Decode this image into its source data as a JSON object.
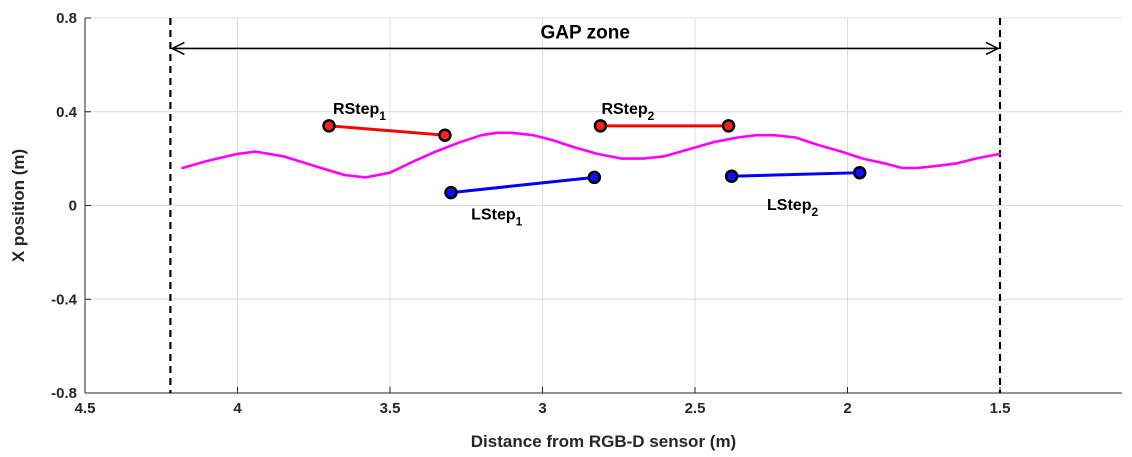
{
  "chart_data": {
    "type": "line",
    "xlabel": "Distance from RGB-D sensor (m)",
    "ylabel": "X position (m)",
    "xlim": [
      1.1,
      4.5
    ],
    "ylim": [
      -0.8,
      0.8
    ],
    "x_reversed": true,
    "x_ticks": [
      4.5,
      4,
      3.5,
      3,
      2.5,
      2,
      1.5
    ],
    "x_tick_labels": [
      "4.5",
      "4",
      "3.5",
      "3",
      "2.5",
      "2",
      "1.5"
    ],
    "y_ticks": [
      -0.8,
      -0.4,
      0,
      0.4,
      0.8
    ],
    "y_tick_labels": [
      "-0.8",
      "-0.4",
      "0",
      "0.4",
      "0.8"
    ],
    "grid": true,
    "gap_zone": {
      "label": "GAP zone",
      "x_start": 4.22,
      "x_end": 1.5,
      "arrow_y": 0.67
    },
    "series": [
      {
        "color": "#ff00ff",
        "x": [
          4.18,
          4.1,
          4.0,
          3.94,
          3.85,
          3.75,
          3.65,
          3.58,
          3.5,
          3.42,
          3.35,
          3.27,
          3.2,
          3.15,
          3.1,
          3.03,
          2.97,
          2.9,
          2.82,
          2.74,
          2.67,
          2.6,
          2.52,
          2.44,
          2.36,
          2.3,
          2.24,
          2.17,
          2.1,
          2.02,
          1.95,
          1.88,
          1.82,
          1.77,
          1.7,
          1.64,
          1.58,
          1.5
        ],
        "y": [
          0.16,
          0.19,
          0.22,
          0.23,
          0.21,
          0.17,
          0.13,
          0.12,
          0.14,
          0.19,
          0.23,
          0.27,
          0.3,
          0.31,
          0.31,
          0.3,
          0.28,
          0.25,
          0.22,
          0.2,
          0.2,
          0.21,
          0.24,
          0.27,
          0.29,
          0.3,
          0.3,
          0.29,
          0.26,
          0.23,
          0.2,
          0.18,
          0.16,
          0.16,
          0.17,
          0.18,
          0.2,
          0.22
        ]
      }
    ],
    "steps": [
      {
        "label": "RStep",
        "sub": "1",
        "color": "#ff0000",
        "marker_fill": "#ff2020",
        "x": [
          3.7,
          3.32
        ],
        "y": [
          0.34,
          0.3
        ],
        "label_x": 3.6,
        "label_y": 0.39
      },
      {
        "label": "RStep",
        "sub": "2",
        "color": "#ff0000",
        "marker_fill": "#ff2020",
        "x": [
          2.81,
          2.39
        ],
        "y": [
          0.34,
          0.34
        ],
        "label_x": 2.72,
        "label_y": 0.39
      },
      {
        "label": "LStep",
        "sub": "1",
        "color": "#0000ff",
        "marker_fill": "#1010ff",
        "x": [
          3.3,
          2.83
        ],
        "y": [
          0.055,
          0.12
        ],
        "label_x": 3.15,
        "label_y": -0.06
      },
      {
        "label": "LStep",
        "sub": "2",
        "color": "#0000ff",
        "marker_fill": "#1010ff",
        "x": [
          2.38,
          1.96
        ],
        "y": [
          0.125,
          0.14
        ],
        "label_x": 2.18,
        "label_y": -0.02
      }
    ]
  }
}
